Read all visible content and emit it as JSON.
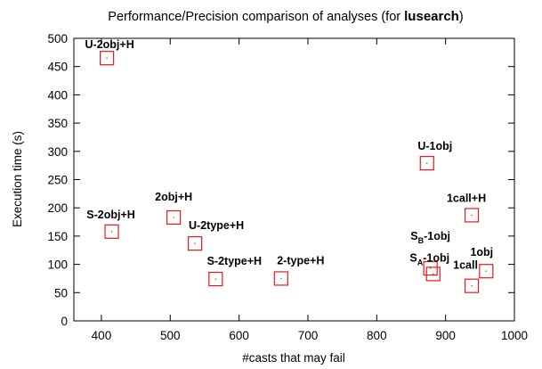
{
  "chart_data": {
    "type": "scatter",
    "title": "Performance/Precision comparison of analyses (for ",
    "title_emphasis": "lusearch",
    "title_suffix": ")",
    "xlabel": "#casts that may fail",
    "ylabel": "Execution time (s)",
    "xlim": [
      360,
      1000
    ],
    "ylim": [
      0,
      500
    ],
    "x_ticks": [
      400,
      500,
      600,
      700,
      800,
      900,
      1000
    ],
    "y_ticks": [
      0,
      50,
      100,
      150,
      200,
      250,
      300,
      350,
      400,
      450,
      500
    ],
    "grid": false,
    "marker": "open-square",
    "marker_color": "#e41a1c",
    "points": [
      {
        "label": "U-2obj+H",
        "x": 408,
        "y": 465
      },
      {
        "label": "S-2obj+H",
        "x": 415,
        "y": 158
      },
      {
        "label": "2obj+H",
        "x": 505,
        "y": 183
      },
      {
        "label": "U-2type+H",
        "x": 536,
        "y": 137
      },
      {
        "label": "S-2type+H",
        "x": 566,
        "y": 74
      },
      {
        "label": "2-type+H",
        "x": 661,
        "y": 75
      },
      {
        "label": "U-1obj",
        "x": 873,
        "y": 279
      },
      {
        "label": "S",
        "sub": "B",
        "label_suffix": "-1obj",
        "x": 878,
        "y": 93
      },
      {
        "label": "S",
        "sub": "A",
        "label_suffix": "-1obj",
        "x": 882,
        "y": 83
      },
      {
        "label": "1call+H",
        "x": 938,
        "y": 187
      },
      {
        "label": "1call",
        "x": 938,
        "y": 62
      },
      {
        "label": "1obj",
        "x": 959,
        "y": 88
      }
    ]
  }
}
